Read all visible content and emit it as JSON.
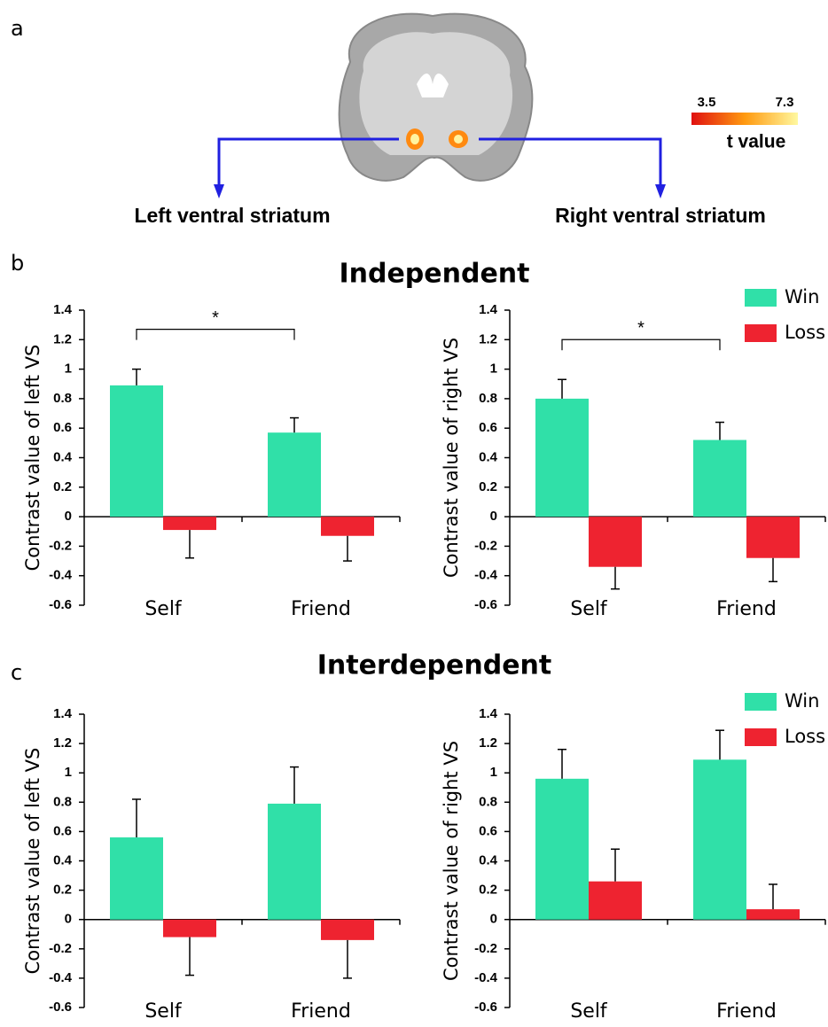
{
  "panel_a": {
    "label": "a",
    "left_label": "Left ventral striatum",
    "right_label": "Right ventral striatum",
    "colorbar": {
      "min": 3.5,
      "max": 7.3,
      "label": "t value"
    }
  },
  "panel_b": {
    "label": "b",
    "title": "Independent"
  },
  "panel_c": {
    "label": "c",
    "title": "Interdependent"
  },
  "chart_data": [
    {
      "type": "bar",
      "ylabel": "Contrast value of left VS",
      "categories": [
        "Self",
        "Friend"
      ],
      "series": [
        {
          "name": "Win",
          "color": "#30e0a8",
          "values": [
            0.89,
            0.57
          ],
          "errors": [
            0.11,
            0.1
          ]
        },
        {
          "name": "Loss",
          "color": "#ee2330",
          "values": [
            -0.09,
            -0.13
          ],
          "errors": [
            0.19,
            0.17
          ]
        }
      ],
      "ylim": [
        -0.6,
        1.4
      ],
      "yticks": [
        -0.6,
        -0.4,
        -0.2,
        0,
        0.2,
        0.4,
        0.6,
        0.8,
        1,
        1.2,
        1.4
      ],
      "annotations": [
        {
          "text": "*"
        }
      ]
    },
    {
      "type": "bar",
      "ylabel": "Contrast value of right VS",
      "categories": [
        "Self",
        "Friend"
      ],
      "series": [
        {
          "name": "Win",
          "color": "#30e0a8",
          "values": [
            0.8,
            0.52
          ],
          "errors": [
            0.13,
            0.12
          ]
        },
        {
          "name": "Loss",
          "color": "#ee2330",
          "values": [
            -0.34,
            -0.28
          ],
          "errors": [
            0.15,
            0.16
          ]
        }
      ],
      "ylim": [
        -0.6,
        1.4
      ],
      "yticks": [
        -0.6,
        -0.4,
        -0.2,
        0,
        0.2,
        0.4,
        0.6,
        0.8,
        1,
        1.2,
        1.4
      ],
      "annotations": [
        {
          "text": "*"
        }
      ],
      "legend": "top-right"
    },
    {
      "type": "bar",
      "ylabel": "Contrast value of left VS",
      "categories": [
        "Self",
        "Friend"
      ],
      "series": [
        {
          "name": "Win",
          "color": "#30e0a8",
          "values": [
            0.56,
            0.79
          ],
          "errors": [
            0.26,
            0.25
          ]
        },
        {
          "name": "Loss",
          "color": "#ee2330",
          "values": [
            -0.12,
            -0.14
          ],
          "errors": [
            0.26,
            0.26
          ]
        }
      ],
      "ylim": [
        -0.6,
        1.4
      ],
      "yticks": [
        -0.6,
        -0.4,
        -0.2,
        0,
        0.2,
        0.4,
        0.6,
        0.8,
        1,
        1.2,
        1.4
      ]
    },
    {
      "type": "bar",
      "ylabel": "Contrast value of right VS",
      "categories": [
        "Self",
        "Friend"
      ],
      "series": [
        {
          "name": "Win",
          "color": "#30e0a8",
          "values": [
            0.96,
            1.09
          ],
          "errors": [
            0.2,
            0.2
          ]
        },
        {
          "name": "Loss",
          "color": "#ee2330",
          "values": [
            0.26,
            0.07
          ],
          "errors": [
            0.22,
            0.17
          ]
        }
      ],
      "ylim": [
        -0.6,
        1.4
      ],
      "yticks": [
        -0.6,
        -0.4,
        -0.2,
        0,
        0.2,
        0.4,
        0.6,
        0.8,
        1,
        1.2,
        1.4
      ],
      "legend": "top-right"
    }
  ]
}
